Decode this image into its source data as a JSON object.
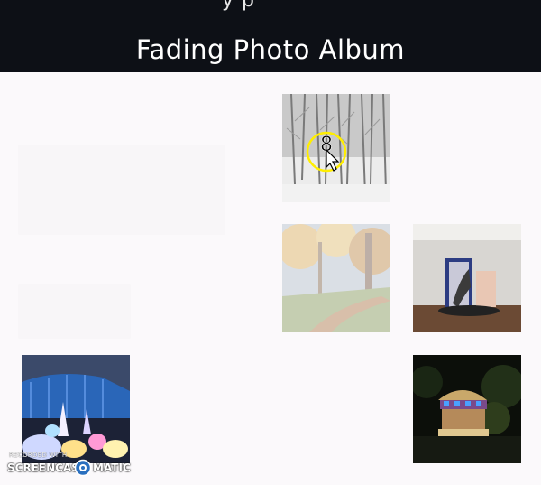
{
  "header": {
    "cropped_text": "y p",
    "title": "Fading Photo Album"
  },
  "photos": [
    {
      "name": "winter-forest",
      "icon": "snowy-trees-photo"
    },
    {
      "name": "autumn-path",
      "icon": "autumn-trees-photo"
    },
    {
      "name": "gallery-installation",
      "icon": "art-gallery-photo"
    },
    {
      "name": "glowing-conservatory",
      "icon": "light-festival-photo"
    },
    {
      "name": "carousel-night",
      "icon": "night-carousel-photo"
    }
  ],
  "cursor": {
    "icon": "pointer-cursor-icon",
    "highlight_color": "#ffee00"
  },
  "watermark": {
    "top_text": "RECORDED WITH",
    "left_text": "SCREENCAST",
    "right_text": "MATIC"
  }
}
